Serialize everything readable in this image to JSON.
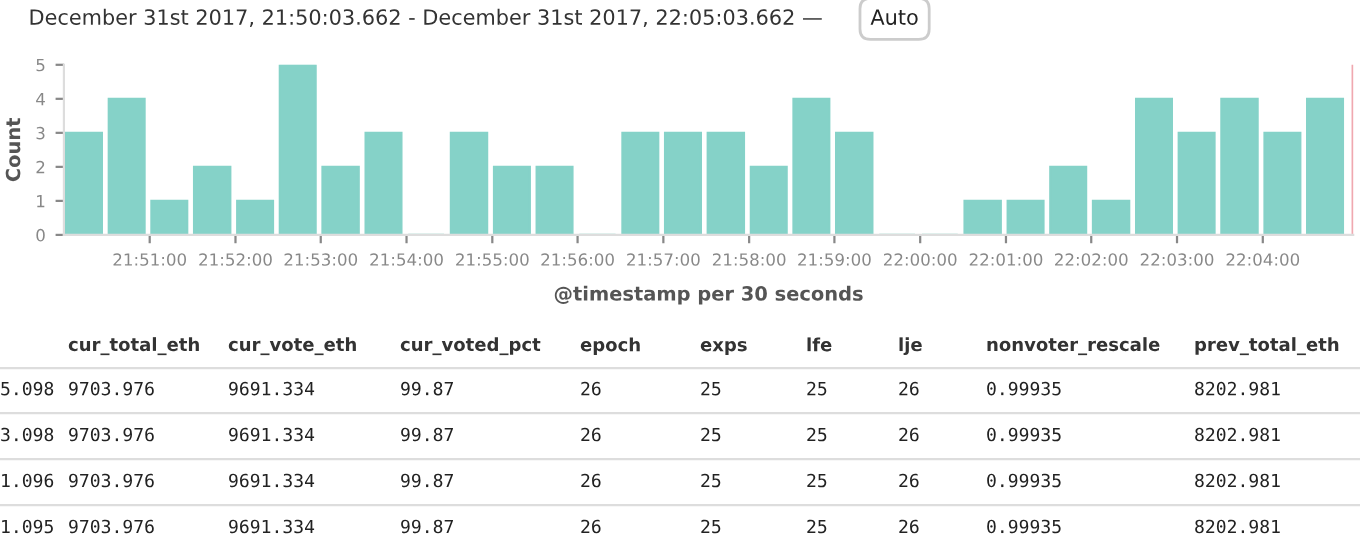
{
  "chart_data": [
    {
      "type": "histogram",
      "title": "December 31st 2017, 21:50:03.662 - December 31st 2017, 22:05:03.662 —",
      "annotations": [
        "Auto"
      ],
      "xlabel": "@timestamp per 30 seconds",
      "ylabel": "Count",
      "color": "#85d2c8",
      "bins": [
        21.8333,
        21.8417,
        21.85,
        21.8583,
        21.8667,
        21.875,
        21.8833,
        21.8917,
        21.9,
        21.9083,
        21.9167,
        21.925,
        21.9333,
        21.9417,
        21.95,
        21.9583,
        21.9667,
        21.975,
        21.9833,
        21.9917,
        22.0,
        22.0083,
        22.0167,
        22.025,
        22.0333,
        22.0417,
        22.05,
        22.0583,
        22.0667,
        22.075,
        22.0833
      ],
      "values": [
        3,
        4,
        1,
        2,
        1,
        5,
        2,
        3,
        0,
        3,
        2,
        2,
        0,
        3,
        3,
        3,
        2,
        4,
        3,
        0,
        0,
        1,
        1,
        2,
        1,
        4,
        3,
        4,
        3,
        4
      ],
      "xlim": [
        21.8333,
        22.0843
      ],
      "ylim": [
        0,
        5
      ],
      "yticks": [
        0,
        1,
        2,
        3,
        4,
        5
      ],
      "xticks": [
        {
          "value": 21.85,
          "label": "21:51:00"
        },
        {
          "value": 21.8667,
          "label": "21:52:00"
        },
        {
          "value": 21.8833,
          "label": "21:53:00"
        },
        {
          "value": 21.9,
          "label": "21:54:00"
        },
        {
          "value": 21.9167,
          "label": "21:55:00"
        },
        {
          "value": 21.9333,
          "label": "21:56:00"
        },
        {
          "value": 21.95,
          "label": "21:57:00"
        },
        {
          "value": 21.9667,
          "label": "21:58:00"
        },
        {
          "value": 21.9833,
          "label": "21:59:00"
        },
        {
          "value": 22.0,
          "label": "22:00:00"
        },
        {
          "value": 22.0167,
          "label": "22:01:00"
        },
        {
          "value": 22.0333,
          "label": "22:02:00"
        },
        {
          "value": 22.05,
          "label": "22:03:00"
        },
        {
          "value": 22.0667,
          "label": "22:04:00"
        }
      ],
      "ref_lines": [
        {
          "axis": "x",
          "value": 22.0843,
          "color": "#f0a8b0"
        }
      ],
      "grid": false,
      "legend": false
    },
    {
      "type": "other",
      "categories": [
        null,
        "cur_total_eth",
        "cur_vote_eth",
        "cur_voted_pct",
        "epoch",
        "exps",
        "lfe",
        "lje",
        "nonvoter_rescale",
        "prev_total_eth"
      ],
      "annotations": [
        "5.098",
        "9703.976",
        "9691.334",
        "99.87",
        "26",
        "25",
        "25",
        "26",
        "0.99935",
        "8202.981",
        "3.098",
        "9703.976",
        "9691.334",
        "99.87",
        "26",
        "25",
        "25",
        "26",
        "0.99935",
        "8202.981",
        "1.096",
        "9703.976",
        "9691.334",
        "99.87",
        "26",
        "25",
        "25",
        "26",
        "0.99935",
        "8202.981",
        "1.095",
        "9703.976",
        "9691.334",
        "99.87",
        "26",
        "25",
        "25",
        "26",
        "0.99935",
        "8202.981"
      ]
    }
  ]
}
